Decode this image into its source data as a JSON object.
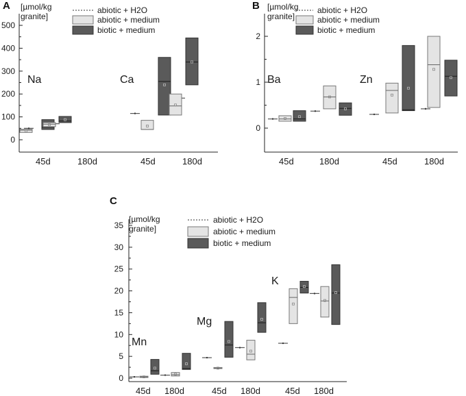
{
  "colors": {
    "abiotic_h2o": "#555555",
    "abiotic_medium_fill": "#e4e4e4",
    "abiotic_medium_stroke": "#777777",
    "biotic_medium_fill": "#5a5a5a",
    "biotic_medium_stroke": "#333333",
    "axis": "#222222"
  },
  "legend": {
    "abiotic_h2o": "abiotic + H2O",
    "abiotic_medium": "abiotic + medium",
    "biotic_medium": "biotic + medium"
  },
  "chart_data": [
    {
      "panel": "A",
      "type": "box",
      "unit_label": [
        "[µmol/kg",
        "granite]"
      ],
      "ylim": [
        -40,
        540
      ],
      "yticks": [
        0,
        100,
        200,
        300,
        400,
        500
      ],
      "minor_ticks": true,
      "legend_position": "top",
      "groups": [
        {
          "element": "Na",
          "times": [
            {
              "label": "45d",
              "abiotic_h2o": 50,
              "abiotic_medium": {
                "min": 30,
                "q1": 32,
                "median": 42,
                "q3": 46,
                "max": 48,
                "mean": 38
              },
              "biotic_medium": {
                "min": 45,
                "q1": 45,
                "median": 55,
                "q3": 88,
                "max": 88,
                "mean": 63
              }
            },
            {
              "label": "180d",
              "abiotic_h2o": 70,
              "abiotic_medium": {
                "min": 57,
                "q1": 57,
                "median": 68,
                "q3": 75,
                "max": 75,
                "mean": 66
              },
              "biotic_medium": {
                "min": 75,
                "q1": 75,
                "median": 82,
                "q3": 102,
                "max": 102,
                "mean": 88
              }
            }
          ]
        },
        {
          "element": "Ca",
          "times": [
            {
              "label": "45d",
              "abiotic_h2o": 115,
              "abiotic_medium": {
                "min": 45,
                "q1": 45,
                "median": 45,
                "q3": 85,
                "max": 85,
                "mean": 60
              },
              "biotic_medium": {
                "min": 108,
                "q1": 108,
                "median": 255,
                "q3": 360,
                "max": 360,
                "mean": 240
              }
            },
            {
              "label": "180d",
              "abiotic_h2o": 182,
              "abiotic_medium": {
                "min": 108,
                "q1": 108,
                "median": 148,
                "q3": 200,
                "max": 200,
                "mean": 152
              },
              "biotic_medium": {
                "min": 240,
                "q1": 240,
                "median": 340,
                "q3": 445,
                "max": 445,
                "mean": 340
              }
            }
          ]
        }
      ]
    },
    {
      "panel": "B",
      "type": "box",
      "unit_label": [
        "[µmol/kg",
        "granite]"
      ],
      "ylim": [
        -0.5,
        2.2
      ],
      "yticks": [
        0,
        1,
        2
      ],
      "minor_ticks": true,
      "legend_position": "top",
      "groups": [
        {
          "element": "Ba",
          "times": [
            {
              "label": "45d",
              "abiotic_h2o": 0.2,
              "abiotic_medium": {
                "min": 0.15,
                "q1": 0.15,
                "median": 0.2,
                "q3": 0.27,
                "max": 0.27,
                "mean": 0.21
              },
              "biotic_medium": {
                "min": 0.15,
                "q1": 0.15,
                "median": 0.2,
                "q3": 0.38,
                "max": 0.38,
                "mean": 0.25
              }
            },
            {
              "label": "180d",
              "abiotic_h2o": 0.37,
              "abiotic_medium": {
                "min": 0.42,
                "q1": 0.42,
                "median": 0.68,
                "q3": 0.92,
                "max": 0.92,
                "mean": 0.68
              },
              "biotic_medium": {
                "min": 0.28,
                "q1": 0.28,
                "median": 0.43,
                "q3": 0.55,
                "max": 0.55,
                "mean": 0.42
              }
            }
          ]
        },
        {
          "element": "Zn",
          "times": [
            {
              "label": "45d",
              "abiotic_h2o": 0.3,
              "abiotic_medium": {
                "min": 0.33,
                "q1": 0.33,
                "median": 0.82,
                "q3": 0.98,
                "max": 0.98,
                "mean": 0.72
              },
              "biotic_medium": {
                "min": 0.38,
                "q1": 0.38,
                "median": 0.4,
                "q3": 1.8,
                "max": 1.8,
                "mean": 0.87
              }
            },
            {
              "label": "180d",
              "abiotic_h2o": 0.42,
              "abiotic_medium": {
                "min": 0.45,
                "q1": 0.45,
                "median": 1.38,
                "q3": 2.0,
                "max": 2.0,
                "mean": 1.28
              },
              "biotic_medium": {
                "min": 0.7,
                "q1": 0.7,
                "median": 1.13,
                "q3": 1.48,
                "max": 1.48,
                "mean": 1.1
              }
            }
          ]
        }
      ]
    },
    {
      "panel": "C",
      "type": "box",
      "unit_label": [
        "[µmol/kg",
        "granite]"
      ],
      "ylim": [
        -0.5,
        35
      ],
      "yticks": [
        0,
        5,
        10,
        15,
        20,
        25,
        30,
        35
      ],
      "minor_ticks": true,
      "legend_position": "top",
      "groups": [
        {
          "element": "Mn",
          "times": [
            {
              "label": "45d",
              "abiotic_h2o": 0.3,
              "abiotic_medium": {
                "min": 0.15,
                "q1": 0.15,
                "median": 0.3,
                "q3": 0.45,
                "max": 0.45,
                "mean": 0.3
              },
              "biotic_medium": {
                "min": 0.9,
                "q1": 0.9,
                "median": 1.7,
                "q3": 4.3,
                "max": 4.3,
                "mean": 2.3
              }
            },
            {
              "label": "180d",
              "abiotic_h2o": 0.7,
              "abiotic_medium": {
                "min": 0.5,
                "q1": 0.5,
                "median": 0.8,
                "q3": 1.3,
                "max": 1.3,
                "mean": 0.9
              },
              "biotic_medium": {
                "min": 2.0,
                "q1": 2.0,
                "median": 2.2,
                "q3": 5.7,
                "max": 5.7,
                "mean": 3.3
              }
            }
          ]
        },
        {
          "element": "Mg",
          "times": [
            {
              "label": "45d",
              "abiotic_h2o": 4.7,
              "abiotic_medium": {
                "min": 2.2,
                "q1": 2.2,
                "median": 2.3,
                "q3": 2.45,
                "max": 2.45,
                "mean": 2.3
              },
              "biotic_medium": {
                "min": 4.8,
                "q1": 4.8,
                "median": 7.6,
                "q3": 13.0,
                "max": 13.0,
                "mean": 8.4
              }
            },
            {
              "label": "180d",
              "abiotic_h2o": 7.0,
              "abiotic_medium": {
                "min": 4.2,
                "q1": 4.2,
                "median": 5.5,
                "q3": 8.7,
                "max": 8.7,
                "mean": 6.2
              },
              "biotic_medium": {
                "min": 10.5,
                "q1": 10.5,
                "median": 12.7,
                "q3": 17.3,
                "max": 17.3,
                "mean": 13.5
              }
            }
          ]
        },
        {
          "element": "K",
          "times": [
            {
              "label": "45d",
              "abiotic_h2o": 8.0,
              "abiotic_medium": {
                "min": 12.5,
                "q1": 12.5,
                "median": 18.5,
                "q3": 20.5,
                "max": 20.5,
                "mean": 17.0
              },
              "biotic_medium": {
                "min": 19.5,
                "q1": 19.5,
                "median": 20.8,
                "q3": 22.2,
                "max": 22.2,
                "mean": 21.0
              }
            },
            {
              "label": "180d",
              "abiotic_h2o": 19.4,
              "abiotic_medium": {
                "min": 14.0,
                "q1": 14.0,
                "median": 17.7,
                "q3": 21.0,
                "max": 21.0,
                "mean": 17.8
              },
              "biotic_medium": {
                "min": 12.3,
                "q1": 12.3,
                "median": 19.5,
                "q3": 26.0,
                "max": 26.0,
                "mean": 19.6
              }
            }
          ]
        }
      ]
    }
  ]
}
